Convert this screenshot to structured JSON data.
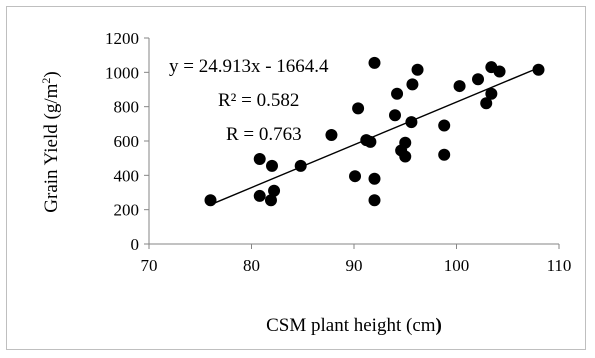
{
  "chart_data": {
    "type": "scatter",
    "xlabel": "CSM plant height (cm)",
    "xlabel_parts": [
      "CSM plant height (cm",
      ")"
    ],
    "ylabel": "Grain Yield (g/m²)",
    "ylabel_parts": [
      "Grain Yield (g/m",
      "2",
      ")"
    ],
    "xlim": [
      70,
      110
    ],
    "ylim": [
      0,
      1200
    ],
    "x_ticks": [
      70,
      80,
      90,
      100,
      110
    ],
    "y_ticks": [
      0,
      200,
      400,
      600,
      800,
      1000,
      1200
    ],
    "grid": false,
    "legend": "none",
    "marker_color": "#000000",
    "trendline": {
      "slope": 24.913,
      "intercept": -1664.4,
      "x_range": [
        76,
        108
      ],
      "equation": "y = 24.913x - 1664.4",
      "r_squared": "R² = 0.582",
      "r": "R = 0.763"
    },
    "points": [
      {
        "x": 76.0,
        "y": 255
      },
      {
        "x": 80.8,
        "y": 495
      },
      {
        "x": 80.8,
        "y": 280
      },
      {
        "x": 81.9,
        "y": 255
      },
      {
        "x": 82.0,
        "y": 455
      },
      {
        "x": 82.2,
        "y": 310
      },
      {
        "x": 84.8,
        "y": 455
      },
      {
        "x": 87.8,
        "y": 635
      },
      {
        "x": 90.1,
        "y": 395
      },
      {
        "x": 90.4,
        "y": 790
      },
      {
        "x": 91.2,
        "y": 605
      },
      {
        "x": 91.6,
        "y": 595
      },
      {
        "x": 92.0,
        "y": 1055
      },
      {
        "x": 92.0,
        "y": 380
      },
      {
        "x": 92.0,
        "y": 255
      },
      {
        "x": 94.0,
        "y": 750
      },
      {
        "x": 94.2,
        "y": 875
      },
      {
        "x": 94.6,
        "y": 545
      },
      {
        "x": 95.0,
        "y": 510
      },
      {
        "x": 95.0,
        "y": 590
      },
      {
        "x": 95.6,
        "y": 710
      },
      {
        "x": 95.7,
        "y": 930
      },
      {
        "x": 96.2,
        "y": 1015
      },
      {
        "x": 98.8,
        "y": 690
      },
      {
        "x": 98.8,
        "y": 520
      },
      {
        "x": 100.3,
        "y": 920
      },
      {
        "x": 102.1,
        "y": 960
      },
      {
        "x": 102.9,
        "y": 820
      },
      {
        "x": 103.4,
        "y": 1030
      },
      {
        "x": 103.4,
        "y": 875
      },
      {
        "x": 104.2,
        "y": 1005
      },
      {
        "x": 108.0,
        "y": 1015
      }
    ]
  }
}
